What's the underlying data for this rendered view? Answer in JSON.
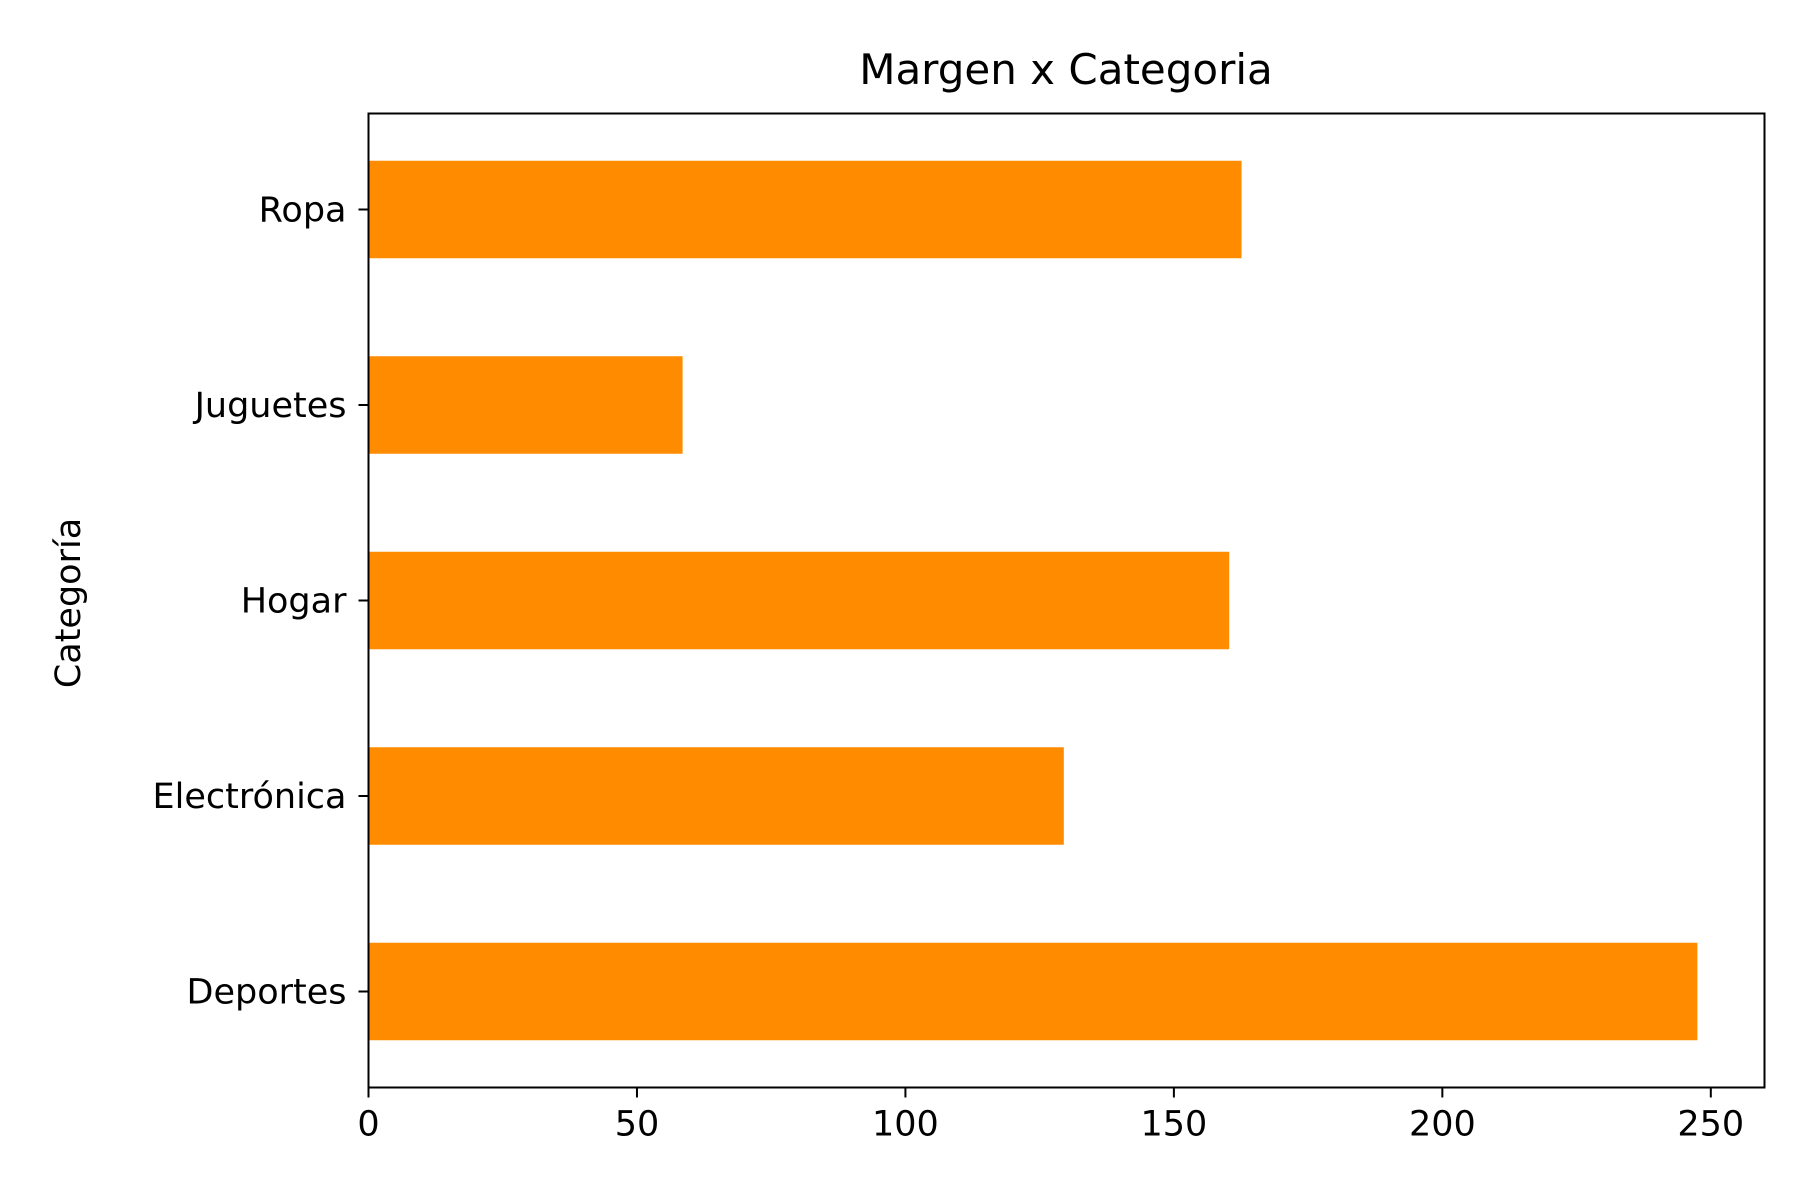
{
  "chart_data": {
    "type": "bar",
    "orientation": "horizontal",
    "title": "Margen x Categoria",
    "xlabel": "",
    "ylabel": "Categoría",
    "categories": [
      "Deportes",
      "Electrónica",
      "Hogar",
      "Juguetes",
      "Ropa"
    ],
    "values": [
      247.5,
      129.5,
      160.3,
      58.5,
      162.6
    ],
    "xlim": [
      0,
      260
    ],
    "xticks": [
      0,
      50,
      100,
      150,
      200,
      250
    ],
    "bar_color": "#ff8c00",
    "grid": false,
    "legend": "none"
  }
}
